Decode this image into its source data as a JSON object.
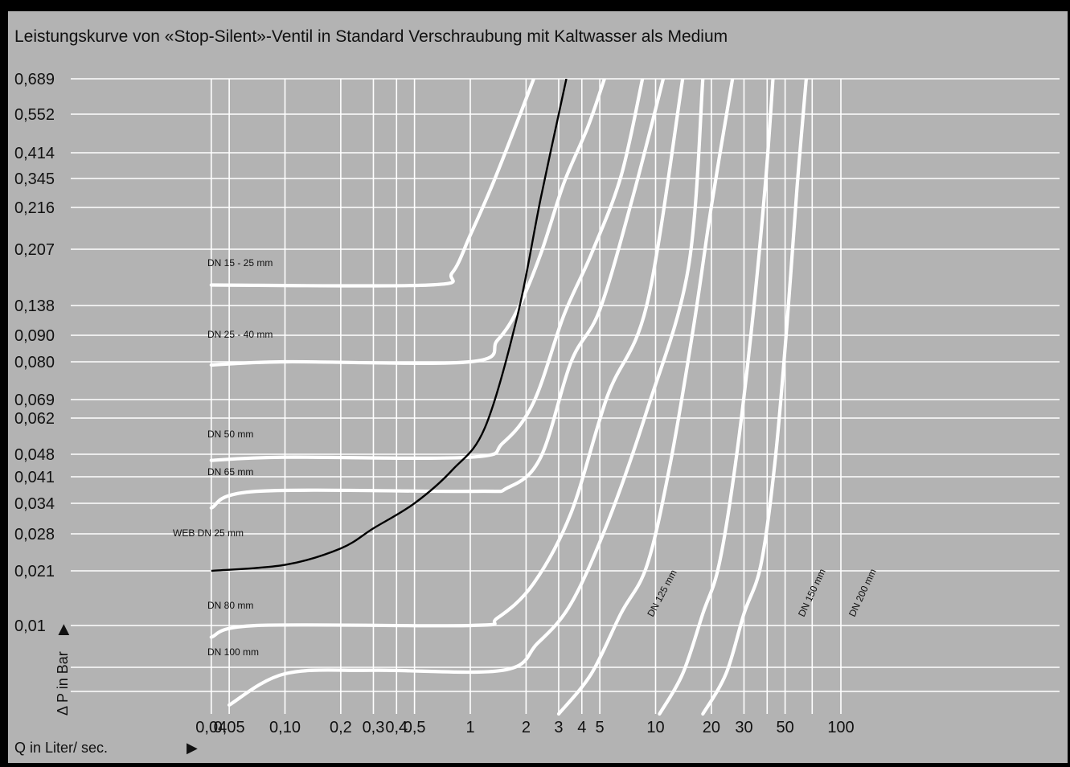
{
  "chart_data": {
    "type": "line",
    "title": "Leistungskurve von «Stop-Silent»-Ventil in Standard  Verschraubung mit Kaltwasser als Medium",
    "xlabel": "Q in Liter/ sec.",
    "xlabel_arrow": "▶",
    "ylabel": "Δ P in Bar",
    "ylabel_arrow": "▶",
    "x_scale": "log",
    "xlim": [
      0.04,
      115
    ],
    "x_ticks": [
      {
        "value": 0.04,
        "label": "0,04"
      },
      {
        "value": 0.05,
        "label": "0,05"
      },
      {
        "value": 0.1,
        "label": "0,10"
      },
      {
        "value": 0.2,
        "label": "0,2"
      },
      {
        "value": 0.3,
        "label": "0,3"
      },
      {
        "value": 0.4,
        "label": "0,4"
      },
      {
        "value": 0.5,
        "label": "0,5"
      },
      {
        "value": 1,
        "label": "1"
      },
      {
        "value": 2,
        "label": "2"
      },
      {
        "value": 3,
        "label": "3"
      },
      {
        "value": 4,
        "label": "4"
      },
      {
        "value": 5,
        "label": "5"
      },
      {
        "value": 10,
        "label": "10"
      },
      {
        "value": 20,
        "label": "20"
      },
      {
        "value": 30,
        "label": "30"
      },
      {
        "value": 50,
        "label": "50"
      },
      {
        "value": 100,
        "label": "100"
      }
    ],
    "y_ticks": [
      "0,689",
      "0,552",
      "0,414",
      "0,345",
      "0,216",
      "0,207",
      "0,138",
      "0,090",
      "0,080",
      "0,069",
      "0,062",
      "0,048",
      "0,041",
      "0,034",
      "0,028",
      "0,021",
      "0,01"
    ],
    "grid": true,
    "series": [
      {
        "name": "DN 15 - 25 mm",
        "color": "#ffffff",
        "points": [
          [
            0.04,
            0.16
          ],
          [
            0.6,
            0.16
          ],
          [
            0.8,
            0.175
          ],
          [
            1,
            0.21
          ],
          [
            1.3,
            0.3
          ],
          [
            1.7,
            0.48
          ],
          [
            2.2,
            0.689
          ]
        ]
      },
      {
        "name": "DN 25 - 40 mm",
        "color": "#ffffff",
        "points": [
          [
            0.04,
            0.079
          ],
          [
            0.1,
            0.08
          ],
          [
            1,
            0.08
          ],
          [
            1.4,
            0.088
          ],
          [
            1.8,
            0.13
          ],
          [
            2.4,
            0.2
          ],
          [
            3.2,
            0.32
          ],
          [
            4.3,
            0.5
          ],
          [
            5.3,
            0.689
          ]
        ]
      },
      {
        "name": "DN 50 mm",
        "color": "#ffffff",
        "points": [
          [
            0.04,
            0.046
          ],
          [
            0.1,
            0.047
          ],
          [
            1,
            0.047
          ],
          [
            1.5,
            0.052
          ],
          [
            2.2,
            0.068
          ],
          [
            3.2,
            0.12
          ],
          [
            4.5,
            0.2
          ],
          [
            6.5,
            0.35
          ],
          [
            8.5,
            0.689
          ]
        ]
      },
      {
        "name": "DN 65 mm",
        "color": "#ffffff",
        "points": [
          [
            0.04,
            0.033
          ],
          [
            0.07,
            0.037
          ],
          [
            1,
            0.037
          ],
          [
            1.6,
            0.038
          ],
          [
            2.4,
            0.047
          ],
          [
            3.5,
            0.08
          ],
          [
            5,
            0.13
          ],
          [
            7.5,
            0.25
          ],
          [
            11,
            0.689
          ]
        ]
      },
      {
        "name": "DN 80 mm",
        "color": "#ffffff",
        "points": [
          [
            0.04,
            0.0085
          ],
          [
            0.07,
            0.0095
          ],
          [
            1,
            0.0095
          ],
          [
            1.4,
            0.011
          ],
          [
            2.2,
            0.018
          ],
          [
            3.5,
            0.032
          ],
          [
            5.5,
            0.07
          ],
          [
            9,
            0.14
          ],
          [
            14,
            0.689
          ]
        ]
      },
      {
        "name": "DN 100 mm",
        "color": "#ffffff",
        "points": [
          [
            0.05,
            0.0035
          ],
          [
            0.1,
            0.006
          ],
          [
            0.3,
            0.0062
          ],
          [
            1.5,
            0.0062
          ],
          [
            2.3,
            0.008
          ],
          [
            3.5,
            0.014
          ],
          [
            5.5,
            0.03
          ],
          [
            9,
            0.065
          ],
          [
            15,
            0.18
          ],
          [
            18,
            0.689
          ]
        ]
      },
      {
        "name": "DN 125 mm",
        "color": "#ffffff",
        "points": [
          [
            3,
            0.003
          ],
          [
            4.5,
            0.006
          ],
          [
            6.5,
            0.012
          ],
          [
            9,
            0.022
          ],
          [
            12,
            0.045
          ],
          [
            16,
            0.1
          ],
          [
            20,
            0.22
          ],
          [
            26,
            0.689
          ]
        ]
      },
      {
        "name": "DN 150 mm",
        "color": "#ffffff",
        "points": [
          [
            10.5,
            0.003
          ],
          [
            14,
            0.006
          ],
          [
            18,
            0.012
          ],
          [
            22,
            0.022
          ],
          [
            27,
            0.045
          ],
          [
            33,
            0.1
          ],
          [
            39,
            0.3
          ],
          [
            43,
            0.689
          ]
        ]
      },
      {
        "name": "DN 200 mm",
        "color": "#ffffff",
        "points": [
          [
            18,
            0.003
          ],
          [
            24,
            0.006
          ],
          [
            30,
            0.012
          ],
          [
            37,
            0.022
          ],
          [
            44,
            0.045
          ],
          [
            51,
            0.1
          ],
          [
            58,
            0.3
          ],
          [
            65,
            0.689
          ]
        ]
      },
      {
        "name": "WEB DN 25 mm",
        "color": "#000000",
        "points": [
          [
            0.04,
            0.021
          ],
          [
            0.1,
            0.022
          ],
          [
            0.2,
            0.025
          ],
          [
            0.3,
            0.029
          ],
          [
            0.5,
            0.034
          ],
          [
            0.8,
            0.043
          ],
          [
            1.2,
            0.058
          ],
          [
            1.8,
            0.12
          ],
          [
            2.4,
            0.25
          ],
          [
            3.3,
            0.689
          ]
        ]
      }
    ]
  }
}
